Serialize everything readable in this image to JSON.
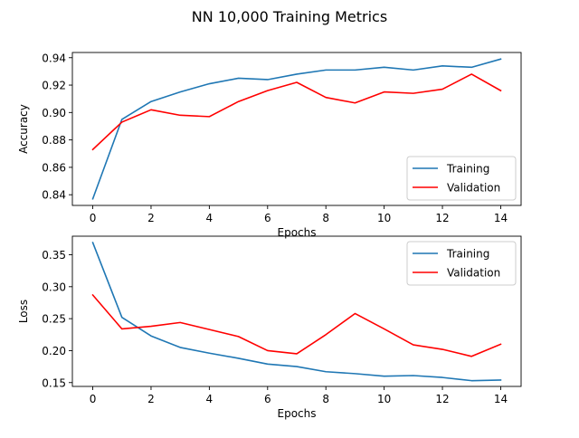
{
  "figure": {
    "suptitle": "NN 10,000 Training Metrics"
  },
  "chart_data": [
    {
      "type": "line",
      "title": "",
      "xlabel": "Epochs",
      "ylabel": "Accuracy",
      "xlim": [
        -0.7,
        14.7
      ],
      "ylim": [
        0.8322,
        0.9438
      ],
      "xticks": [
        0,
        2,
        4,
        6,
        8,
        10,
        12,
        14
      ],
      "yticks": [
        0.84,
        0.86,
        0.88,
        0.9,
        0.92,
        0.94
      ],
      "ytick_labels": [
        "0.84",
        "0.86",
        "0.88",
        "0.90",
        "0.92",
        "0.94"
      ],
      "legend_position": "lower-right",
      "x": [
        0,
        1,
        2,
        3,
        4,
        5,
        6,
        7,
        8,
        9,
        10,
        11,
        12,
        13,
        14
      ],
      "series": [
        {
          "name": "Training",
          "color": "#1f77b4",
          "values": [
            0.837,
            0.895,
            0.908,
            0.915,
            0.921,
            0.925,
            0.924,
            0.928,
            0.931,
            0.931,
            0.933,
            0.931,
            0.934,
            0.933,
            0.939
          ]
        },
        {
          "name": "Validation",
          "color": "#ff0000",
          "values": [
            0.873,
            0.893,
            0.902,
            0.898,
            0.897,
            0.908,
            0.916,
            0.922,
            0.911,
            0.907,
            0.915,
            0.914,
            0.917,
            0.928,
            0.916
          ]
        }
      ]
    },
    {
      "type": "line",
      "title": "",
      "xlabel": "Epochs",
      "ylabel": "Loss",
      "xlim": [
        -0.7,
        14.7
      ],
      "ylim": [
        0.144,
        0.379
      ],
      "xticks": [
        0,
        2,
        4,
        6,
        8,
        10,
        12,
        14
      ],
      "yticks": [
        0.15,
        0.2,
        0.25,
        0.3,
        0.35
      ],
      "ytick_labels": [
        "0.15",
        "0.20",
        "0.25",
        "0.30",
        "0.35"
      ],
      "legend_position": "upper-right",
      "x": [
        0,
        1,
        2,
        3,
        4,
        5,
        6,
        7,
        8,
        9,
        10,
        11,
        12,
        13,
        14
      ],
      "series": [
        {
          "name": "Training",
          "color": "#1f77b4",
          "values": [
            0.369,
            0.252,
            0.223,
            0.205,
            0.196,
            0.188,
            0.179,
            0.175,
            0.167,
            0.164,
            0.16,
            0.161,
            0.158,
            0.153,
            0.154
          ]
        },
        {
          "name": "Validation",
          "color": "#ff0000",
          "values": [
            0.287,
            0.234,
            0.238,
            0.244,
            0.233,
            0.222,
            0.2,
            0.195,
            0.225,
            0.258,
            0.234,
            0.209,
            0.202,
            0.191,
            0.21
          ]
        }
      ]
    }
  ]
}
